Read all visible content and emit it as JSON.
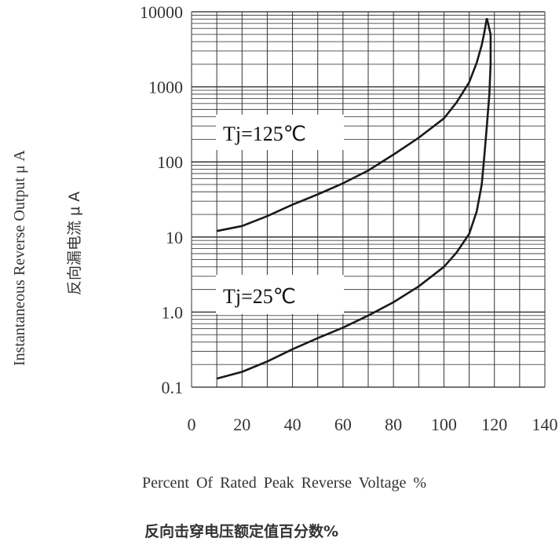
{
  "chart_data": {
    "type": "line",
    "xlabel": "Percent Of Rated Peak Reverse Voltage %",
    "xlabel_cn": "反向击穿电压额定值百分数%",
    "ylabel": "Instantaneous Reverse Output μ A",
    "ylabel_cn": "反向漏电流 μ A",
    "x_ticks": [
      "0",
      "20",
      "40",
      "60",
      "80",
      "100",
      "120",
      "140"
    ],
    "y_ticks": [
      "0.1",
      "1.0",
      "10",
      "100",
      "1000",
      "10000"
    ],
    "xlim": [
      0,
      140
    ],
    "ylim": [
      0.1,
      10000
    ],
    "y_scale": "log",
    "grid": true,
    "series": [
      {
        "name": "Tj=125℃",
        "x": [
          10,
          20,
          30,
          40,
          50,
          60,
          70,
          80,
          90,
          100,
          105,
          110,
          113,
          115,
          116,
          117
        ],
        "y": [
          12,
          14,
          19,
          27,
          37,
          52,
          77,
          125,
          210,
          380,
          620,
          1150,
          2100,
          3600,
          5300,
          8200
        ]
      },
      {
        "name": "Tj=25℃",
        "x": [
          10,
          20,
          30,
          40,
          50,
          60,
          70,
          80,
          90,
          100,
          105,
          110,
          113,
          115,
          116,
          117,
          118,
          118.5,
          118.5,
          117
        ],
        "y": [
          0.13,
          0.16,
          0.22,
          0.32,
          0.45,
          0.62,
          0.9,
          1.35,
          2.2,
          4.0,
          6.2,
          11,
          22,
          50,
          120,
          300,
          800,
          2000,
          5000,
          8200
        ]
      }
    ],
    "annotations": [
      "Tj=125℃",
      "Tj=25℃"
    ]
  }
}
